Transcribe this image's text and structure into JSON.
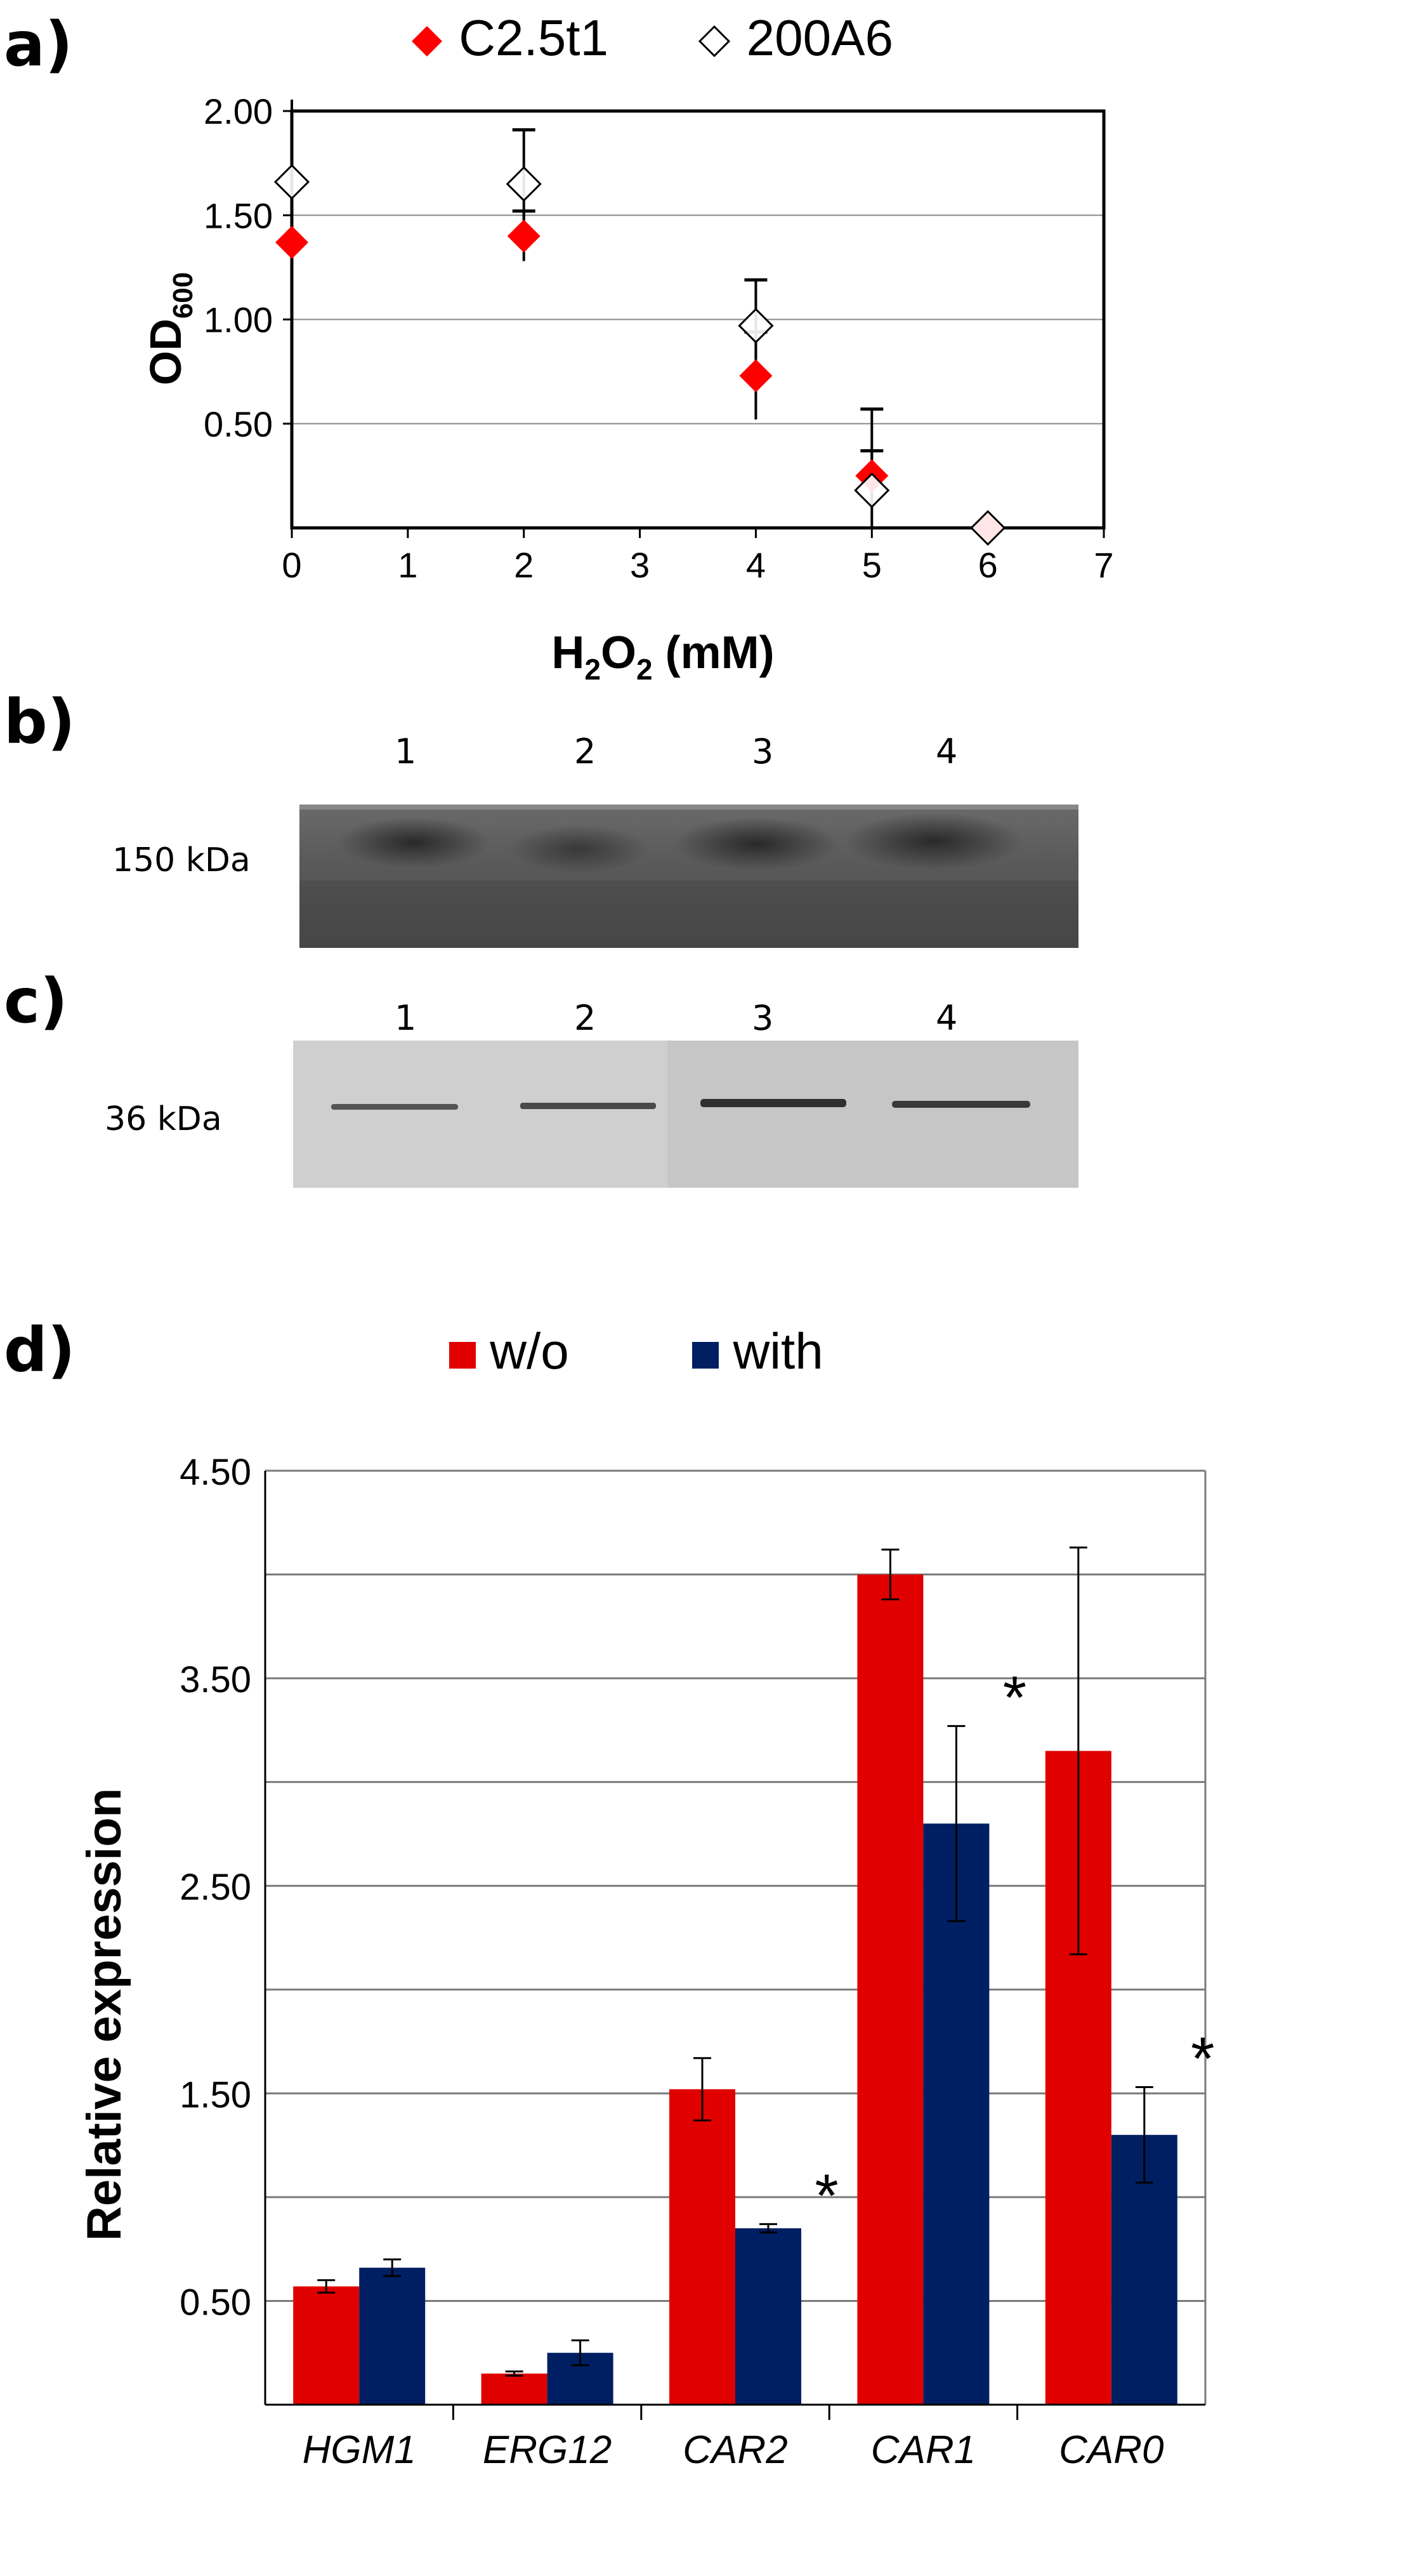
{
  "panels": {
    "a": "a)",
    "b": "b)",
    "c": "c)",
    "d": "d)"
  },
  "chart_data": [
    {
      "type": "scatter",
      "xlabel_main": "H",
      "xlabel_sub1": "2",
      "xlabel_mid": "O",
      "xlabel_sub2": "2",
      "xlabel_tail": " (mM)",
      "ylabel_main": "OD",
      "ylabel_sub": "600",
      "xlim": [
        0,
        7
      ],
      "ylim": [
        0,
        2.0
      ],
      "x_ticks": [
        "0",
        "1",
        "2",
        "3",
        "4",
        "5",
        "6",
        "7"
      ],
      "y_ticks": [
        "0.50",
        "1.00",
        "1.50",
        "2.00"
      ],
      "legend_placement": "top",
      "series": [
        {
          "name": "C2.5t1",
          "color": "#ff0000",
          "marker": "filled-diamond",
          "x": [
            0,
            2,
            4,
            5,
            6
          ],
          "y": [
            1.37,
            1.4,
            0.73,
            0.25,
            0.0
          ],
          "err": [
            0,
            0.12,
            0.21,
            0.12,
            0
          ]
        },
        {
          "name": "200A6",
          "color": "#ffffff",
          "marker": "open-diamond",
          "x": [
            0,
            2,
            4,
            5,
            6
          ],
          "y": [
            1.66,
            1.65,
            0.97,
            0.18,
            0.0
          ],
          "err": [
            0,
            0.26,
            0.22,
            0.39,
            0
          ]
        }
      ]
    },
    {
      "type": "bar",
      "ylabel": "Relative expression",
      "ylim": [
        0,
        4.5
      ],
      "y_ticks": [
        "0.50",
        "1.50",
        "2.50",
        "3.50",
        "4.50"
      ],
      "gridlines": [
        0.5,
        1.0,
        1.5,
        2.0,
        2.5,
        3.0,
        3.5,
        4.0,
        4.5
      ],
      "categories": [
        "HGM1",
        "ERG12",
        "CAR2",
        "CAR1",
        "CAR0"
      ],
      "legend_placement": "top",
      "series": [
        {
          "name": "w/o",
          "color": "#e00000",
          "values": [
            0.57,
            0.15,
            1.52,
            4.0,
            3.15
          ],
          "err": [
            0.03,
            0.01,
            0.15,
            0.12,
            0.98
          ]
        },
        {
          "name": "with",
          "color": "#001f63",
          "values": [
            0.66,
            0.25,
            0.85,
            2.8,
            1.3
          ],
          "err": [
            0.04,
            0.06,
            0.02,
            0.47,
            0.23
          ]
        }
      ],
      "significance": [
        {
          "category_index": 2,
          "label": "*"
        },
        {
          "category_index": 3,
          "label": "*"
        },
        {
          "category_index": 4,
          "label": "*"
        }
      ]
    }
  ],
  "gel_b": {
    "size_label": "150 kDa",
    "lanes": [
      "1",
      "2",
      "3",
      "4"
    ]
  },
  "gel_c": {
    "size_label": "36 kDa",
    "lanes": [
      "1",
      "2",
      "3",
      "4"
    ]
  }
}
